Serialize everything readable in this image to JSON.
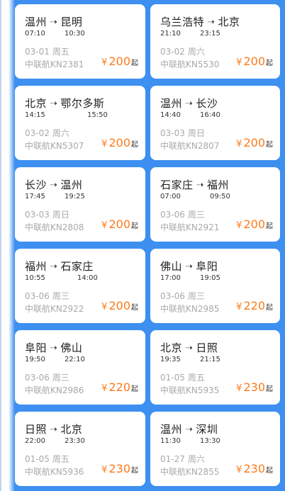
{
  "currency_symbol": "¥",
  "price_suffix": "起",
  "accent_color": "#ff7a1a",
  "background_color": "#3d8ff0",
  "arrow_icon": "arrow-right-icon",
  "tickets": [
    {
      "from": "温州",
      "to": "昆明",
      "depart": "07:10",
      "arrive": "10:30",
      "date": "03-01",
      "weekday": "周五",
      "flight": "中联航KN2381",
      "price": "200"
    },
    {
      "from": "乌兰浩特",
      "to": "北京",
      "depart": "21:10",
      "arrive": "23:15",
      "date": "03-02",
      "weekday": "周六",
      "flight": "中联航KN5530",
      "price": "200"
    },
    {
      "from": "北京",
      "to": "鄂尔多斯",
      "depart": "14:15",
      "arrive": "15:50",
      "date": "03-02",
      "weekday": "周六",
      "flight": "中联航KN5307",
      "price": "200"
    },
    {
      "from": "温州",
      "to": "长沙",
      "depart": "14:40",
      "arrive": "16:40",
      "date": "03-03",
      "weekday": "周日",
      "flight": "中联航KN2807",
      "price": "200"
    },
    {
      "from": "长沙",
      "to": "温州",
      "depart": "17:45",
      "arrive": "19:25",
      "date": "03-03",
      "weekday": "周日",
      "flight": "中联航KN2808",
      "price": "200"
    },
    {
      "from": "石家庄",
      "to": "福州",
      "depart": "07:00",
      "arrive": "09:50",
      "date": "03-06",
      "weekday": "周三",
      "flight": "中联航KN2921",
      "price": "200"
    },
    {
      "from": "福州",
      "to": "石家庄",
      "depart": "10:55",
      "arrive": "14:00",
      "date": "03-06",
      "weekday": "周三",
      "flight": "中联航KN2922",
      "price": "200"
    },
    {
      "from": "佛山",
      "to": "阜阳",
      "depart": "17:00",
      "arrive": "19:05",
      "date": "03-06",
      "weekday": "周三",
      "flight": "中联航KN2985",
      "price": "220"
    },
    {
      "from": "阜阳",
      "to": "佛山",
      "depart": "19:50",
      "arrive": "22:10",
      "date": "03-06",
      "weekday": "周三",
      "flight": "中联航KN2986",
      "price": "220"
    },
    {
      "from": "北京",
      "to": "日照",
      "depart": "19:35",
      "arrive": "21:15",
      "date": "01-05",
      "weekday": "周五",
      "flight": "中联航KN5935",
      "price": "230"
    },
    {
      "from": "日照",
      "to": "北京",
      "depart": "22:00",
      "arrive": "23:30",
      "date": "01-05",
      "weekday": "周五",
      "flight": "中联航KN5936",
      "price": "230"
    },
    {
      "from": "温州",
      "to": "深圳",
      "depart": "11:30",
      "arrive": "13:30",
      "date": "01-27",
      "weekday": "周六",
      "flight": "中联航KN2855",
      "price": "230"
    }
  ]
}
